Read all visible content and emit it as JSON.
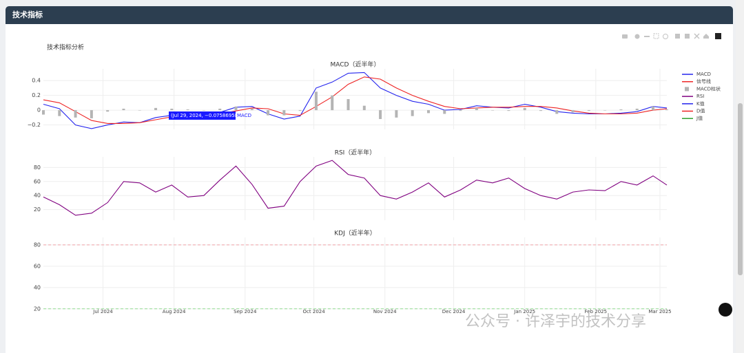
{
  "header": {
    "title": "技术指标"
  },
  "figure": {
    "title": "技术指标分析",
    "tooltip": {
      "text": "(Jul 29, 2024, −0.07586958)",
      "name": "MACD"
    },
    "watermark": "公众号 · 许泽宇的技术分享"
  },
  "chart_data": [
    {
      "type": "line",
      "title": "MACD（近半年）",
      "x": [
        "2024-06-05",
        "2024-06-12",
        "2024-06-19",
        "2024-06-26",
        "2024-07-03",
        "2024-07-10",
        "2024-07-17",
        "2024-07-24",
        "2024-07-31",
        "2024-08-07",
        "2024-08-14",
        "2024-08-21",
        "2024-08-28",
        "2024-09-04",
        "2024-09-11",
        "2024-09-18",
        "2024-09-25",
        "2024-10-02",
        "2024-10-09",
        "2024-10-16",
        "2024-10-23",
        "2024-10-30",
        "2024-11-06",
        "2024-11-13",
        "2024-11-20",
        "2024-11-27",
        "2024-12-04",
        "2024-12-11",
        "2024-12-18",
        "2024-12-25",
        "2025-01-01",
        "2025-01-08",
        "2025-01-15",
        "2025-01-22",
        "2025-01-29",
        "2025-02-05",
        "2025-02-12",
        "2025-02-19",
        "2025-02-26",
        "2025-03-04"
      ],
      "series": [
        {
          "name": "MACD",
          "color": "#2323ee",
          "values": [
            0.08,
            0.02,
            -0.2,
            -0.25,
            -0.2,
            -0.16,
            -0.17,
            -0.1,
            -0.07,
            -0.06,
            -0.07,
            -0.03,
            0.04,
            0.05,
            -0.05,
            -0.12,
            -0.08,
            0.3,
            0.38,
            0.5,
            0.51,
            0.3,
            0.2,
            0.12,
            0.08,
            0.0,
            0.01,
            0.06,
            0.04,
            0.03,
            0.08,
            0.04,
            -0.02,
            -0.04,
            -0.05,
            -0.05,
            -0.04,
            -0.02,
            0.05,
            0.03
          ]
        },
        {
          "name": "信号线",
          "color": "#ee2222",
          "values": [
            0.14,
            0.1,
            -0.02,
            -0.14,
            -0.18,
            -0.18,
            -0.17,
            -0.13,
            -0.09,
            -0.07,
            -0.07,
            -0.05,
            -0.01,
            0.03,
            0.02,
            -0.05,
            -0.07,
            0.05,
            0.18,
            0.35,
            0.45,
            0.42,
            0.3,
            0.2,
            0.12,
            0.05,
            0.02,
            0.03,
            0.04,
            0.04,
            0.05,
            0.05,
            0.03,
            -0.01,
            -0.04,
            -0.05,
            -0.05,
            -0.04,
            0.0,
            0.02
          ]
        },
        {
          "name": "MACD柱状",
          "color": "#b4b4b4",
          "type": "bar",
          "values": [
            -0.06,
            -0.08,
            -0.1,
            -0.11,
            -0.02,
            0.02,
            0,
            0.03,
            0.02,
            0.01,
            0,
            0.02,
            0.05,
            0.02,
            -0.07,
            -0.07,
            -0.01,
            0.25,
            0.2,
            0.15,
            0.06,
            -0.12,
            -0.1,
            -0.08,
            -0.04,
            -0.05,
            -0.01,
            0.03,
            0,
            -0.01,
            0.03,
            -0.01,
            -0.05,
            -0.03,
            -0.01,
            0,
            0.01,
            0.02,
            0.05,
            0.01
          ]
        }
      ],
      "ylim": [
        -0.26,
        0.56
      ],
      "yticks": [
        {
          "value": -0.2,
          "label": "−0.2"
        },
        0,
        0.2,
        0.4
      ]
    },
    {
      "type": "line",
      "title": "RSI（近半年）",
      "x": [
        "2024-06-05",
        "2024-06-12",
        "2024-06-19",
        "2024-06-26",
        "2024-07-03",
        "2024-07-10",
        "2024-07-17",
        "2024-07-24",
        "2024-07-31",
        "2024-08-07",
        "2024-08-14",
        "2024-08-21",
        "2024-08-28",
        "2024-09-04",
        "2024-09-11",
        "2024-09-18",
        "2024-09-25",
        "2024-10-02",
        "2024-10-09",
        "2024-10-16",
        "2024-10-23",
        "2024-10-30",
        "2024-11-06",
        "2024-11-13",
        "2024-11-20",
        "2024-11-27",
        "2024-12-04",
        "2024-12-11",
        "2024-12-18",
        "2024-12-25",
        "2025-01-01",
        "2025-01-08",
        "2025-01-15",
        "2025-01-22",
        "2025-01-29",
        "2025-02-05",
        "2025-02-12",
        "2025-02-19",
        "2025-02-26",
        "2025-03-04"
      ],
      "series": [
        {
          "name": "RSI",
          "color": "#800080",
          "values": [
            38,
            27,
            12,
            15,
            30,
            60,
            58,
            45,
            55,
            38,
            40,
            62,
            82,
            56,
            22,
            25,
            60,
            82,
            90,
            70,
            65,
            40,
            35,
            45,
            58,
            38,
            48,
            62,
            58,
            65,
            50,
            40,
            35,
            45,
            48,
            47,
            60,
            55,
            68,
            55
          ]
        }
      ],
      "ylim": [
        5,
        95
      ],
      "yticks": [
        20,
        40,
        60,
        80
      ]
    },
    {
      "type": "line",
      "title": "KDJ（近半年）",
      "series": [
        {
          "name": "K值",
          "color": "#2323ee",
          "values": []
        },
        {
          "name": "D值",
          "color": "#ee2222",
          "values": []
        },
        {
          "name": "J值",
          "color": "#2ca02c",
          "values": []
        }
      ],
      "reference_lines": [
        {
          "value": 80,
          "color": "#f0a0a8"
        },
        {
          "value": 20,
          "color": "#90dc90"
        }
      ],
      "xlim": [
        "2024-06-05",
        "2025-03-04"
      ],
      "xticks": [
        {
          "value": "2024-07-01",
          "label": "Jul 2024"
        },
        {
          "value": "2024-08-01",
          "label": "Aug 2024"
        },
        {
          "value": "2024-09-01",
          "label": "Sep 2024"
        },
        {
          "value": "2024-10-01",
          "label": "Oct 2024"
        },
        {
          "value": "2024-11-01",
          "label": "Nov 2024"
        },
        {
          "value": "2024-12-01",
          "label": "Dec 2024"
        },
        {
          "value": "2025-01-01",
          "label": "Jan 2025"
        },
        {
          "value": "2025-02-01",
          "label": "Feb 2025"
        },
        {
          "value": "2025-03-01",
          "label": "Mar 2025"
        }
      ],
      "ylim": [
        16,
        87
      ],
      "yticks": [
        20,
        40,
        60,
        80
      ]
    }
  ]
}
